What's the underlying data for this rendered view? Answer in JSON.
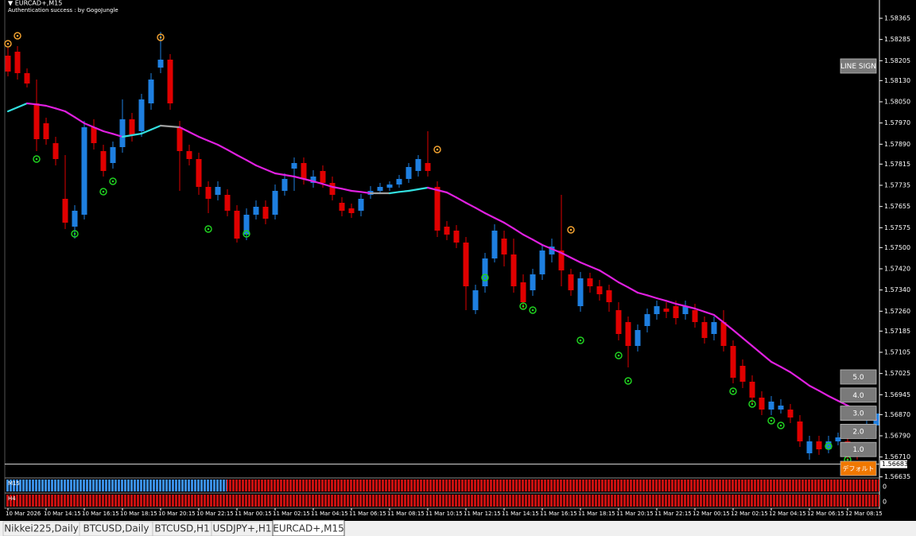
{
  "chart_data": {
    "type": "candlestick",
    "symbol_label": "▼ EURCAD+,M15",
    "subtitle": "Authentication success : by GogoJungle",
    "categories": [
      "10 Mar 2026",
      null,
      null,
      null,
      "10 Mar 14:15",
      null,
      null,
      null,
      "10 Mar 16:15",
      null,
      null,
      null,
      "10 Mar 18:15",
      null,
      null,
      null,
      "10 Mar 20:15",
      null,
      null,
      null,
      "10 Mar 22:15",
      null,
      null,
      null,
      "11 Mar 00:15",
      null,
      null,
      null,
      "11 Mar 02:15",
      null,
      null,
      null,
      "11 Mar 04:15",
      null,
      null,
      null,
      "11 Mar 06:15",
      null,
      null,
      null,
      "11 Mar 08:15",
      null,
      null,
      null,
      "11 Mar 10:15",
      null,
      null,
      null,
      "11 Mar 12:15",
      null,
      null,
      null,
      "11 Mar 14:15",
      null,
      null,
      null,
      "11 Mar 16:15",
      null,
      null,
      null,
      "11 Mar 18:15",
      null,
      null,
      null,
      "11 Mar 20:15",
      null,
      null,
      null,
      "11 Mar 22:15",
      null,
      null,
      null,
      "12 Mar 00:15",
      null,
      null,
      null,
      "12 Mar 02:15",
      null,
      null,
      null,
      "12 Mar 04:15",
      null,
      null,
      null,
      "12 Mar 06:15",
      null,
      null,
      null,
      "12 Mar 08:15",
      null,
      null,
      null
    ],
    "open": [
      1.58224,
      1.58239,
      1.58158,
      1.58044,
      1.57969,
      1.57894,
      1.57684,
      1.57579,
      1.57624,
      1.57954,
      1.57864,
      1.57819,
      1.57879,
      1.57984,
      1.57939,
      1.58044,
      1.58179,
      1.58209,
      1.57954,
      1.57864,
      1.57834,
      1.57729,
      1.57699,
      1.57699,
      1.57639,
      1.57549,
      1.57624,
      1.57654,
      1.57624,
      1.57714,
      1.57798,
      1.57819,
      1.57744,
      1.57789,
      1.57744,
      1.57669,
      1.57648,
      1.57639,
      1.57699,
      1.57714,
      1.57726,
      1.57738,
      1.57759,
      1.57789,
      1.57819,
      1.57729,
      1.57579,
      1.57564,
      1.57519,
      1.57264,
      1.57354,
      1.57459,
      1.57534,
      1.57474,
      1.57369,
      1.57339,
      1.57399,
      1.57474,
      1.57489,
      1.57399,
      1.57279,
      1.57384,
      1.57354,
      1.57339,
      1.57264,
      1.57219,
      1.57129,
      1.57204,
      1.57249,
      1.5727,
      1.57279,
      1.57249,
      1.57264,
      1.57219,
      1.57174,
      1.57219,
      1.57129,
      1.57054,
      1.56994,
      1.56934,
      1.56889,
      1.56889,
      1.56889,
      1.56844,
      1.56724,
      1.56769,
      1.56739,
      1.56769,
      1.56769,
      1.56739,
      1.56799,
      1.56829
    ],
    "high": [
      1.58254,
      1.5826,
      1.58176,
      1.58134,
      1.5799,
      1.57918,
      1.57849,
      1.5766,
      1.57978,
      1.57984,
      1.57888,
      1.579,
      1.58059,
      1.58008,
      1.5808,
      1.58158,
      1.58314,
      1.5823,
      1.57978,
      1.57888,
      1.57858,
      1.5775,
      1.5775,
      1.5772,
      1.5766,
      1.57648,
      1.57678,
      1.57678,
      1.57738,
      1.5778,
      1.5784,
      1.5784,
      1.57792,
      1.5781,
      1.57768,
      1.5769,
      1.57666,
      1.57702,
      1.57732,
      1.57744,
      1.5775,
      1.57774,
      1.57819,
      1.57849,
      1.57939,
      1.5775,
      1.576,
      1.57585,
      1.5754,
      1.5736,
      1.5748,
      1.57588,
      1.57564,
      1.57534,
      1.57399,
      1.5742,
      1.5751,
      1.57534,
      1.57699,
      1.5742,
      1.57408,
      1.57405,
      1.57378,
      1.5736,
      1.57294,
      1.5724,
      1.5721,
      1.5727,
      1.573,
      1.57294,
      1.573,
      1.573,
      1.57288,
      1.5724,
      1.5724,
      1.57264,
      1.5715,
      1.57078,
      1.57018,
      1.56958,
      1.5694,
      1.56928,
      1.5691,
      1.56868,
      1.5679,
      1.5679,
      1.5679,
      1.56802,
      1.5679,
      1.5676,
      1.5685,
      1.56898
    ],
    "low": [
      1.58146,
      1.58134,
      1.58104,
      1.57864,
      1.57888,
      1.5781,
      1.5757,
      1.57534,
      1.57606,
      1.5787,
      1.57768,
      1.57798,
      1.57858,
      1.579,
      1.57918,
      1.5802,
      1.58158,
      1.5802,
      1.57714,
      1.5781,
      1.57699,
      1.5763,
      1.57678,
      1.57618,
      1.57519,
      1.57528,
      1.57606,
      1.57588,
      1.57606,
      1.57696,
      1.57714,
      1.57738,
      1.57726,
      1.57726,
      1.57678,
      1.57618,
      1.57612,
      1.57618,
      1.57684,
      1.57702,
      1.57714,
      1.57726,
      1.57744,
      1.57768,
      1.57768,
      1.5754,
      1.57528,
      1.57498,
      1.57264,
      1.57249,
      1.5733,
      1.57444,
      1.57429,
      1.5733,
      1.5727,
      1.57318,
      1.57378,
      1.57444,
      1.57354,
      1.57318,
      1.57258,
      1.5733,
      1.573,
      1.57258,
      1.5715,
      1.57048,
      1.57108,
      1.5718,
      1.57228,
      1.57234,
      1.5721,
      1.57228,
      1.57198,
      1.57138,
      1.5715,
      1.57108,
      1.56988,
      1.5697,
      1.5691,
      1.56868,
      1.56868,
      1.56874,
      1.56838,
      1.56748,
      1.567,
      1.56718,
      1.56724,
      1.56754,
      1.56688,
      1.567,
      1.56778,
      1.56808
    ],
    "close": [
      1.58164,
      1.58158,
      1.58119,
      1.57909,
      1.57909,
      1.57834,
      1.57594,
      1.57639,
      1.57954,
      1.57894,
      1.57789,
      1.57879,
      1.57984,
      1.57924,
      1.58059,
      1.58134,
      1.58209,
      1.58044,
      1.57864,
      1.57834,
      1.57729,
      1.57684,
      1.57729,
      1.57639,
      1.57534,
      1.57624,
      1.57654,
      1.57609,
      1.57714,
      1.57759,
      1.57819,
      1.57759,
      1.57768,
      1.57744,
      1.57699,
      1.57639,
      1.5763,
      1.57684,
      1.57714,
      1.57729,
      1.57738,
      1.57759,
      1.57804,
      1.57834,
      1.57789,
      1.57564,
      1.57549,
      1.57519,
      1.57354,
      1.57339,
      1.57459,
      1.57564,
      1.57474,
      1.57354,
      1.57294,
      1.57399,
      1.57489,
      1.57504,
      1.57414,
      1.57339,
      1.57384,
      1.57354,
      1.57324,
      1.57294,
      1.57174,
      1.57129,
      1.57189,
      1.57249,
      1.57279,
      1.57258,
      1.57234,
      1.57279,
      1.57219,
      1.57159,
      1.57219,
      1.57129,
      1.57009,
      1.56994,
      1.56934,
      1.56889,
      1.56919,
      1.56904,
      1.56859,
      1.56769,
      1.56769,
      1.56739,
      1.56769,
      1.56784,
      1.56709,
      1.56724,
      1.56829,
      1.56874
    ],
    "up_color": "#1e7fe0",
    "down_color": "#e00000",
    "ma": {
      "values": [
        1.58014,
        1.58029,
        1.58044,
        1.5804,
        1.58035,
        1.58025,
        1.58014,
        1.57992,
        1.57969,
        1.57954,
        1.57939,
        1.57929,
        1.57918,
        1.57924,
        1.5793,
        1.57945,
        1.5796,
        1.57957,
        1.57954,
        1.57936,
        1.57918,
        1.57903,
        1.57888,
        1.57869,
        1.57849,
        1.5783,
        1.5781,
        1.57795,
        1.5778,
        1.57774,
        1.57768,
        1.57759,
        1.5775,
        1.5774,
        1.57729,
        1.57722,
        1.57714,
        1.5771,
        1.57705,
        1.57705,
        1.57705,
        1.5771,
        1.57714,
        1.5772,
        1.57726,
        1.57717,
        1.57708,
        1.57689,
        1.57669,
        1.5765,
        1.5763,
        1.57612,
        1.57594,
        1.57572,
        1.57549,
        1.5753,
        1.5751,
        1.57495,
        1.5748,
        1.57462,
        1.57444,
        1.57429,
        1.57414,
        1.57392,
        1.57369,
        1.5735,
        1.5733,
        1.5732,
        1.57309,
        1.57299,
        1.57288,
        1.57279,
        1.5727,
        1.57258,
        1.57246,
        1.57218,
        1.57189,
        1.57159,
        1.57129,
        1.57099,
        1.57069,
        1.5705,
        1.5703,
        1.57005,
        1.56979,
        1.5696,
        1.5694,
        1.56922,
        1.56904,
        1.56886,
        1.56868,
        1.5685
      ],
      "up_color": "#33e0e0",
      "down_color": "#e020e0",
      "flat_color": "#a0a0a0"
    },
    "sell_signals": [
      {
        "bar": 0,
        "price": 1.58269
      },
      {
        "bar": 1,
        "price": 1.58299
      },
      {
        "bar": 16,
        "price": 1.58293
      },
      {
        "bar": 45,
        "price": 1.5787
      },
      {
        "bar": 59,
        "price": 1.57567
      }
    ],
    "sell_color": "#f0a030",
    "buy_signals": [
      {
        "bar": 3,
        "price": 1.57834
      },
      {
        "bar": 7,
        "price": 1.57552
      },
      {
        "bar": 10,
        "price": 1.57711
      },
      {
        "bar": 11,
        "price": 1.5775
      },
      {
        "bar": 21,
        "price": 1.5757
      },
      {
        "bar": 25,
        "price": 1.57552
      },
      {
        "bar": 50,
        "price": 1.57387
      },
      {
        "bar": 54,
        "price": 1.57279
      },
      {
        "bar": 55,
        "price": 1.57264
      },
      {
        "bar": 60,
        "price": 1.5715
      },
      {
        "bar": 64,
        "price": 1.57093
      },
      {
        "bar": 65,
        "price": 1.56997
      },
      {
        "bar": 76,
        "price": 1.56958
      },
      {
        "bar": 78,
        "price": 1.5691
      },
      {
        "bar": 80,
        "price": 1.56847
      },
      {
        "bar": 81,
        "price": 1.56829
      },
      {
        "bar": 86,
        "price": 1.56751
      },
      {
        "bar": 88,
        "price": 1.567
      }
    ],
    "buy_color": "#20d020",
    "current_price": 1.56683,
    "ylim": [
      1.56634,
      1.58434
    ],
    "yticks": [
      1.58365,
      1.58285,
      1.58205,
      {
        "value": 1.5813,
        "label": "1.58130"
      },
      {
        "value": 1.5805,
        "label": "1.58050"
      },
      {
        "value": 1.5797,
        "label": "1.57970"
      },
      {
        "value": 1.5789,
        "label": "1.57890"
      },
      1.57815,
      1.57735,
      1.57655,
      1.57575,
      {
        "value": 1.575,
        "label": "1.57500"
      },
      {
        "value": 1.5742,
        "label": "1.57420"
      },
      {
        "value": 1.5734,
        "label": "1.57340"
      },
      {
        "value": 1.5726,
        "label": "1.57260"
      },
      1.57185,
      1.57105,
      1.57025,
      1.56945,
      {
        "value": 1.5687,
        "label": "1.56870"
      },
      {
        "value": 1.5679,
        "label": "1.56790"
      },
      {
        "value": 1.5671,
        "label": "1.56710"
      },
      1.56635
    ],
    "panes": [
      {
        "label": "M15",
        "zero": 0
      },
      {
        "label": "H4",
        "zero": 0
      }
    ],
    "buttons": [
      "LINE SIGN",
      "5.0",
      "4.0",
      "3.0",
      "2.0",
      "1.0",
      "デフォルト"
    ],
    "tabs": [
      "Nikkei225,Daily",
      "BTCUSD,Daily",
      "BTCUSD,H1",
      "USDJPY+,H1",
      "EURCAD+,M15"
    ],
    "active_tab": 4
  }
}
